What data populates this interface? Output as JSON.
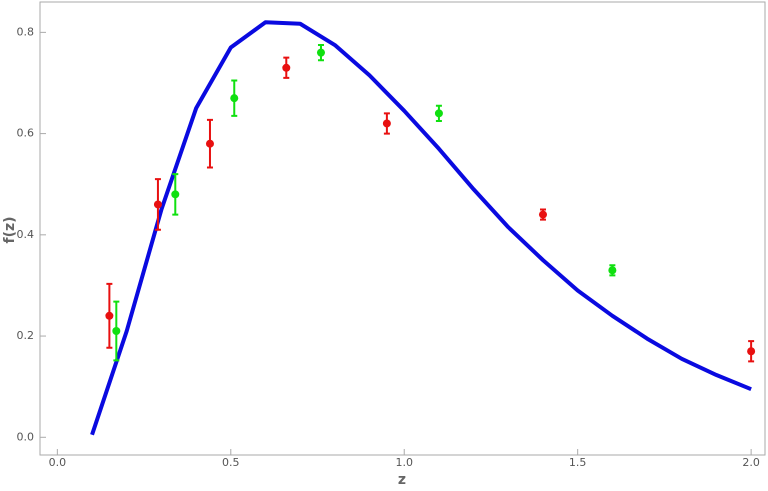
{
  "chart_data": {
    "type": "line",
    "x_label": "z",
    "y_label": "f(z)",
    "xlim": [
      -0.05,
      2.04
    ],
    "ylim": [
      -0.035,
      0.86
    ],
    "xticks": [
      {
        "value": 0,
        "label": "0.0"
      },
      0.5,
      {
        "value": 1,
        "label": "1.0"
      },
      1.5,
      {
        "value": 2,
        "label": "2.0"
      }
    ],
    "yticks": [
      {
        "value": 0,
        "label": "0.0"
      },
      0.2,
      0.4,
      0.6,
      0.8
    ],
    "series": [
      {
        "type": "line",
        "color": "#0a0ae0",
        "x": [
          0.1,
          0.2,
          0.3,
          0.4,
          0.5,
          0.6,
          0.7,
          0.8,
          0.9,
          1.0,
          1.1,
          1.2,
          1.3,
          1.4,
          1.5,
          1.6,
          1.7,
          1.8,
          1.9,
          2.0
        ],
        "values": [
          0.005,
          0.21,
          0.45,
          0.65,
          0.77,
          0.82,
          0.817,
          0.775,
          0.715,
          0.645,
          0.57,
          0.49,
          0.415,
          0.35,
          0.29,
          0.24,
          0.195,
          0.155,
          0.123,
          0.095
        ]
      },
      {
        "type": "errorbar",
        "color": "#e81010",
        "x": [
          0.15,
          0.29,
          0.44,
          0.66,
          0.95,
          1.4,
          2.0
        ],
        "values": [
          0.24,
          0.46,
          0.58,
          0.73,
          0.62,
          0.44,
          0.17
        ],
        "errors": [
          0.063,
          0.05,
          0.047,
          0.02,
          0.02,
          0.01,
          0.02
        ]
      },
      {
        "type": "errorbar",
        "color": "#10e010",
        "x": [
          0.17,
          0.34,
          0.51,
          0.76,
          1.1,
          1.6
        ],
        "values": [
          0.21,
          0.48,
          0.67,
          0.76,
          0.64,
          0.33
        ],
        "errors": [
          0.058,
          0.04,
          0.035,
          0.015,
          0.015,
          0.01
        ]
      }
    ]
  }
}
